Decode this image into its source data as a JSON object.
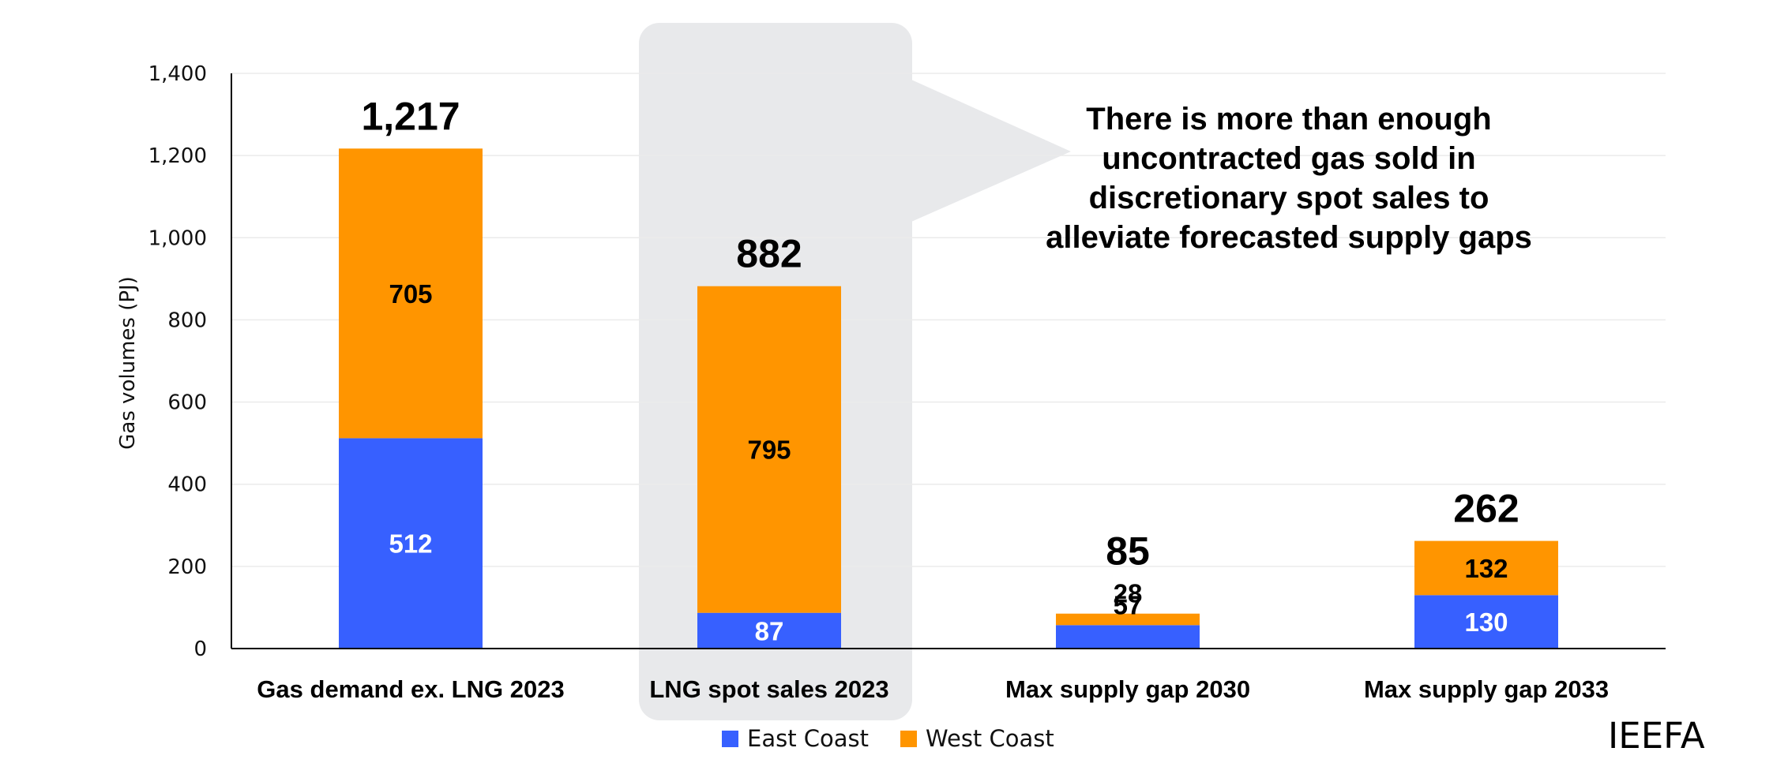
{
  "chart_data": {
    "type": "bar",
    "stacked": true,
    "title": "",
    "xlabel": "",
    "ylabel": "Gas volumes (PJ)",
    "ylim": [
      0,
      1400
    ],
    "yticks": [
      0,
      200,
      400,
      600,
      800,
      1000,
      1200,
      1400
    ],
    "ytick_labels": [
      "0",
      "200",
      "400",
      "600",
      "800",
      "1,000",
      "1,200",
      "1,400"
    ],
    "grid": true,
    "categories": [
      "Gas demand ex. LNG 2023",
      "LNG spot sales 2023",
      "Max supply gap 2030",
      "Max supply gap 2033"
    ],
    "series": [
      {
        "name": "East Coast",
        "color": "#3760FF",
        "label_color": "#FFFFFF",
        "values": [
          512,
          87,
          57,
          130
        ],
        "labels": [
          "512",
          "87",
          "57",
          "130"
        ]
      },
      {
        "name": "West Coast",
        "color": "#FF9500",
        "label_color": "#000000",
        "values": [
          705,
          795,
          28,
          132
        ],
        "labels": [
          "705",
          "795",
          "28",
          "132"
        ]
      }
    ],
    "totals": [
      1217,
      882,
      85,
      262
    ],
    "total_labels": [
      "1,217",
      "882",
      "85",
      "262"
    ],
    "highlighted_category": "LNG spot sales 2023",
    "legend": {
      "position": "bottom",
      "entries": [
        "East Coast",
        "West Coast"
      ]
    },
    "annotation": {
      "points_to": "LNG spot sales 2023",
      "lines": [
        "There is more than enough",
        "uncontracted gas sold in",
        "discretionary spot sales to",
        "alleviate forecasted supply gaps"
      ]
    }
  },
  "colors": {
    "highlight_box": "#E8E9EB",
    "gridline": "#EBEBEB",
    "axis": "#000000"
  },
  "brand": "IEEFA"
}
